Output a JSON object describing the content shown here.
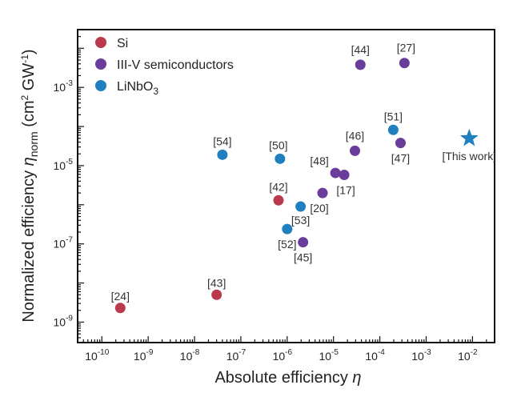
{
  "chart_data": {
    "type": "scatter",
    "xlabel": "Absolute efficiency η",
    "ylabel": "Normalized efficiency η_norm (cm² GW⁻¹)",
    "xscale": "log",
    "yscale": "log",
    "xlim": [
      3e-11,
      0.03
    ],
    "ylim": [
      3e-10,
      0.03
    ],
    "x_ticks": [
      "-10",
      "-9",
      "-8",
      "-7",
      "-6",
      "-5",
      "-4",
      "-3",
      "-2"
    ],
    "y_ticks": [
      "-9",
      "-7",
      "-5",
      "-3"
    ],
    "legend_position": "top-left",
    "grid": false,
    "series": [
      {
        "name": "Si",
        "color": "#b83a4c",
        "marker": "circle",
        "points": [
          {
            "x": 2.5e-10,
            "y": 2.3e-09,
            "label": "[24]"
          },
          {
            "x": 3e-08,
            "y": 5e-09,
            "label": "[43]"
          },
          {
            "x": 6.5e-07,
            "y": 1.3e-06,
            "label": "[42]"
          }
        ]
      },
      {
        "name": "III-V semiconductors",
        "color": "#6a3d9a",
        "marker": "circle",
        "points": [
          {
            "x": 3.8e-05,
            "y": 0.0038,
            "label": "[44]"
          },
          {
            "x": 0.00034,
            "y": 0.0042,
            "label": "[27]"
          },
          {
            "x": 2.9e-05,
            "y": 2.4e-05,
            "label": "[46]"
          },
          {
            "x": 0.00028,
            "y": 3.8e-05,
            "label": "[47]"
          },
          {
            "x": 1.1e-05,
            "y": 6.5e-06,
            "label": "[48]"
          },
          {
            "x": 1.7e-05,
            "y": 5.8e-06,
            "label": "[17]"
          },
          {
            "x": 5.8e-06,
            "y": 2e-06,
            "label": "[20]"
          },
          {
            "x": 2.2e-06,
            "y": 1.1e-07,
            "label": "[45]"
          }
        ]
      },
      {
        "name": "LiNbO₃",
        "color": "#1f7fbf",
        "marker": "circle",
        "points": [
          {
            "x": 4e-08,
            "y": 1.9e-05,
            "label": "[54]"
          },
          {
            "x": 7e-07,
            "y": 1.5e-05,
            "label": "[50]"
          },
          {
            "x": 0.000195,
            "y": 8.2e-05,
            "label": "[51]"
          },
          {
            "x": 1.95e-06,
            "y": 9e-07,
            "label": "[53]"
          },
          {
            "x": 1e-06,
            "y": 2.4e-07,
            "label": "[52]"
          }
        ]
      },
      {
        "color": "#1f7fbf",
        "marker": "star",
        "points": [
          {
            "x": 0.0085,
            "y": 5e-05,
            "label": "[This work]"
          }
        ]
      }
    ]
  }
}
